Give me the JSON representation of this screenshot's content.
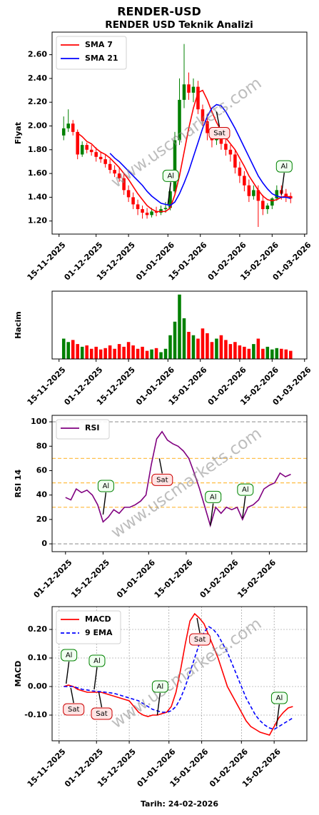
{
  "chart_data": [
    {
      "type": "candlestick",
      "title": "RENDER-USD",
      "subtitle": "RENDER USD Teknik Analizi",
      "y_label": "Fiyat",
      "watermark": "www.uscmarkets.com",
      "up_color": "#008000",
      "down_color": "#ff0000",
      "x": [
        "17-11-2025",
        "19-11-2025",
        "21-11-2025",
        "23-11-2025",
        "25-11-2025",
        "27-11-2025",
        "29-11-2025",
        "01-12-2025",
        "03-12-2025",
        "05-12-2025",
        "07-12-2025",
        "09-12-2025",
        "11-12-2025",
        "13-12-2025",
        "15-12-2025",
        "17-12-2025",
        "19-12-2025",
        "21-12-2025",
        "23-12-2025",
        "25-12-2025",
        "27-12-2025",
        "29-12-2025",
        "31-12-2025",
        "02-01-2026",
        "04-01-2026",
        "06-01-2026",
        "08-01-2026",
        "10-01-2026",
        "12-01-2026",
        "14-01-2026",
        "16-01-2026",
        "18-01-2026",
        "20-01-2026",
        "22-01-2026",
        "24-01-2026",
        "26-01-2026",
        "28-01-2026",
        "30-01-2026",
        "01-02-2026",
        "03-02-2026",
        "05-02-2026",
        "07-02-2026",
        "09-02-2026",
        "11-02-2026",
        "13-02-2026",
        "15-02-2026",
        "17-02-2026",
        "19-02-2026",
        "21-02-2026",
        "23-02-2026"
      ],
      "open": [
        1.92,
        1.98,
        2.02,
        1.95,
        1.76,
        1.84,
        1.8,
        1.78,
        1.74,
        1.72,
        1.68,
        1.63,
        1.6,
        1.56,
        1.46,
        1.4,
        1.34,
        1.3,
        1.27,
        1.25,
        1.28,
        1.27,
        1.3,
        1.31,
        1.45,
        1.88,
        2.22,
        2.35,
        2.28,
        2.33,
        2.14,
        2.04,
        1.94,
        1.88,
        1.92,
        1.85,
        1.8,
        1.76,
        1.65,
        1.58,
        1.5,
        1.41,
        1.46,
        1.37,
        1.3,
        1.33,
        1.39,
        1.46,
        1.43,
        1.41
      ],
      "high": [
        2.08,
        2.14,
        2.05,
        1.97,
        1.87,
        1.86,
        1.84,
        1.82,
        1.78,
        1.76,
        1.72,
        1.67,
        1.65,
        1.6,
        1.5,
        1.44,
        1.38,
        1.33,
        1.31,
        1.31,
        1.32,
        1.33,
        1.36,
        1.5,
        1.95,
        2.4,
        2.69,
        2.45,
        2.4,
        2.38,
        2.18,
        2.1,
        1.98,
        1.95,
        1.96,
        1.9,
        1.84,
        1.8,
        1.7,
        1.62,
        1.55,
        1.5,
        1.5,
        1.42,
        1.35,
        1.4,
        1.5,
        1.5,
        1.47,
        1.44
      ],
      "low": [
        1.88,
        1.95,
        1.92,
        1.72,
        1.74,
        1.77,
        1.75,
        1.7,
        1.69,
        1.65,
        1.6,
        1.57,
        1.53,
        1.42,
        1.36,
        1.3,
        1.25,
        1.22,
        1.22,
        1.23,
        1.24,
        1.25,
        1.27,
        1.29,
        1.42,
        1.84,
        2.15,
        2.22,
        2.2,
        2.1,
        2.0,
        1.88,
        1.82,
        1.84,
        1.8,
        1.75,
        1.7,
        1.6,
        1.52,
        1.45,
        1.36,
        1.38,
        1.15,
        1.25,
        1.26,
        1.3,
        1.37,
        1.38,
        1.36,
        1.35
      ],
      "close": [
        1.98,
        2.02,
        1.95,
        1.76,
        1.84,
        1.8,
        1.78,
        1.74,
        1.72,
        1.68,
        1.63,
        1.6,
        1.56,
        1.46,
        1.4,
        1.34,
        1.3,
        1.27,
        1.25,
        1.28,
        1.27,
        1.3,
        1.31,
        1.45,
        1.88,
        2.22,
        2.35,
        2.28,
        2.33,
        2.14,
        2.04,
        1.94,
        1.88,
        1.92,
        1.85,
        1.8,
        1.76,
        1.65,
        1.58,
        1.5,
        1.41,
        1.46,
        1.37,
        1.3,
        1.33,
        1.39,
        1.46,
        1.43,
        1.41,
        1.39
      ],
      "series": [
        {
          "name": "SMA 7",
          "color": "#ff0000",
          "values": [
            null,
            null,
            null,
            1.94,
            1.91,
            1.87,
            1.85,
            1.81,
            1.78,
            1.76,
            1.73,
            1.69,
            1.65,
            1.6,
            1.55,
            1.49,
            1.43,
            1.38,
            1.33,
            1.3,
            1.28,
            1.28,
            1.28,
            1.31,
            1.42,
            1.58,
            1.78,
            1.98,
            2.15,
            2.28,
            2.3,
            2.22,
            2.12,
            2.03,
            1.96,
            1.9,
            1.85,
            1.8,
            1.73,
            1.66,
            1.58,
            1.52,
            1.46,
            1.41,
            1.38,
            1.37,
            1.38,
            1.4,
            1.41,
            1.4
          ]
        },
        {
          "name": "SMA 21",
          "color": "#0000ff",
          "values": [
            null,
            null,
            null,
            null,
            null,
            null,
            null,
            null,
            null,
            null,
            1.77,
            1.73,
            1.7,
            1.66,
            1.62,
            1.58,
            1.54,
            1.5,
            1.45,
            1.41,
            1.38,
            1.35,
            1.34,
            1.33,
            1.36,
            1.43,
            1.52,
            1.62,
            1.74,
            1.86,
            1.98,
            2.08,
            2.15,
            2.18,
            2.17,
            2.12,
            2.05,
            1.98,
            1.9,
            1.82,
            1.74,
            1.66,
            1.58,
            1.52,
            1.47,
            1.43,
            1.41,
            1.4,
            1.4,
            1.39
          ]
        }
      ],
      "annotations": [
        {
          "text": "Al",
          "x": "01-01-2026",
          "y": 1.34
        },
        {
          "text": "Sat",
          "x": "22-01-2026",
          "y": 2.12
        },
        {
          "text": "Al",
          "x": "19-02-2026",
          "y": 1.42
        }
      ],
      "xlim": [
        "12-11-2025",
        "02-03-2026"
      ],
      "xticks": [
        "15-11-2025",
        "01-12-2025",
        "15-12-2025",
        "01-01-2026",
        "15-01-2026",
        "01-02-2026",
        "15-02-2026",
        "01-03-2026"
      ],
      "ylim": [
        1.09,
        2.79
      ],
      "yticks": [
        {
          "value": 1.2,
          "label": "1.20"
        },
        {
          "value": 1.4,
          "label": "1.40"
        },
        {
          "value": 1.6,
          "label": "1.60"
        },
        {
          "value": 1.8,
          "label": "1.80"
        },
        {
          "value": 2.0,
          "label": "2.00"
        },
        {
          "value": 2.2,
          "label": "2.20"
        },
        {
          "value": 2.4,
          "label": "2.40"
        },
        {
          "value": 2.6,
          "label": "2.60"
        }
      ],
      "legend": "upper left"
    },
    {
      "type": "bar",
      "y_label": "Hacim",
      "up_color": "#008000",
      "down_color": "#ff0000",
      "x": [
        "17-11-2025",
        "19-11-2025",
        "21-11-2025",
        "23-11-2025",
        "25-11-2025",
        "27-11-2025",
        "29-11-2025",
        "01-12-2025",
        "03-12-2025",
        "05-12-2025",
        "07-12-2025",
        "09-12-2025",
        "11-12-2025",
        "13-12-2025",
        "15-12-2025",
        "17-12-2025",
        "19-12-2025",
        "21-12-2025",
        "23-12-2025",
        "25-12-2025",
        "27-12-2025",
        "29-12-2025",
        "31-12-2025",
        "02-01-2026",
        "04-01-2026",
        "06-01-2026",
        "08-01-2026",
        "10-01-2026",
        "12-01-2026",
        "14-01-2026",
        "16-01-2026",
        "18-01-2026",
        "20-01-2026",
        "22-01-2026",
        "24-01-2026",
        "26-01-2026",
        "28-01-2026",
        "30-01-2026",
        "01-02-2026",
        "03-02-2026",
        "05-02-2026",
        "07-02-2026",
        "09-02-2026",
        "11-02-2026",
        "13-02-2026",
        "15-02-2026",
        "17-02-2026",
        "19-02-2026",
        "21-02-2026",
        "23-02-2026"
      ],
      "values": [
        30,
        25,
        28,
        22,
        18,
        20,
        15,
        18,
        14,
        16,
        20,
        15,
        22,
        18,
        25,
        20,
        15,
        18,
        12,
        14,
        16,
        10,
        15,
        35,
        55,
        95,
        60,
        40,
        35,
        30,
        45,
        38,
        25,
        30,
        35,
        28,
        22,
        25,
        20,
        18,
        15,
        22,
        30,
        15,
        18,
        14,
        16,
        15,
        14,
        12
      ],
      "xlim": [
        "12-11-2025",
        "02-03-2026"
      ],
      "xticks": [
        "15-11-2025",
        "01-12-2025",
        "15-12-2025",
        "01-01-2026",
        "15-01-2026",
        "01-02-2026",
        "15-02-2026",
        "01-03-2026"
      ],
      "ylim": [
        0,
        100
      ]
    },
    {
      "type": "line",
      "y_label": "RSI 14",
      "watermark": "www.uscmarkets.com",
      "x": [
        "01-12-2025",
        "03-12-2025",
        "05-12-2025",
        "07-12-2025",
        "09-12-2025",
        "11-12-2025",
        "13-12-2025",
        "15-12-2025",
        "17-12-2025",
        "19-12-2025",
        "21-12-2025",
        "23-12-2025",
        "25-12-2025",
        "27-12-2025",
        "29-12-2025",
        "31-12-2025",
        "02-01-2026",
        "04-01-2026",
        "06-01-2026",
        "08-01-2026",
        "10-01-2026",
        "12-01-2026",
        "14-01-2026",
        "16-01-2026",
        "18-01-2026",
        "20-01-2026",
        "22-01-2026",
        "24-01-2026",
        "26-01-2026",
        "28-01-2026",
        "30-01-2026",
        "01-02-2026",
        "03-02-2026",
        "05-02-2026",
        "07-02-2026",
        "09-02-2026",
        "11-02-2026",
        "13-02-2026",
        "15-02-2026",
        "17-02-2026",
        "19-02-2026",
        "21-02-2026",
        "23-02-2026"
      ],
      "series": [
        {
          "name": "RSI",
          "color": "#800080",
          "values": [
            38,
            36,
            45,
            42,
            44,
            40,
            32,
            18,
            22,
            28,
            25,
            30,
            30,
            32,
            35,
            40,
            65,
            86,
            92,
            85,
            82,
            80,
            76,
            70,
            58,
            45,
            30,
            15,
            30,
            25,
            30,
            28,
            30,
            20,
            30,
            32,
            36,
            45,
            48,
            50,
            58,
            55,
            57
          ]
        }
      ],
      "hlines": [
        {
          "value": 0,
          "color": "#aaaaaa"
        },
        {
          "value": 30,
          "color": "#ffc04d"
        },
        {
          "value": 50,
          "color": "#ffc04d"
        },
        {
          "value": 70,
          "color": "#ffc04d"
        },
        {
          "value": 100,
          "color": "#aaaaaa"
        }
      ],
      "annotations": [
        {
          "text": "Al",
          "x": "15-12-2025",
          "y": 24
        },
        {
          "text": "Sat",
          "x": "05-01-2026",
          "y": 70
        },
        {
          "text": "Al",
          "x": "24-01-2026",
          "y": 15
        },
        {
          "text": "Al",
          "x": "05-02-2026",
          "y": 21
        }
      ],
      "xlim": [
        "26-11-2025",
        "01-03-2026"
      ],
      "xticks": [
        "01-12-2025",
        "15-12-2025",
        "01-01-2026",
        "15-01-2026",
        "01-02-2026",
        "15-02-2026"
      ],
      "ylim": [
        -6.4,
        105.3
      ],
      "yticks": [
        0,
        20,
        40,
        60,
        80,
        100
      ],
      "legend": "upper left"
    },
    {
      "type": "line",
      "y_label": "MACD",
      "x_label": "Tarih: 24-02-2026",
      "watermark": "www.uscmarkets.com",
      "grid": true,
      "x": [
        "17-11-2025",
        "19-11-2025",
        "21-11-2025",
        "23-11-2025",
        "25-11-2025",
        "27-11-2025",
        "29-11-2025",
        "01-12-2025",
        "03-12-2025",
        "05-12-2025",
        "07-12-2025",
        "09-12-2025",
        "11-12-2025",
        "13-12-2025",
        "15-12-2025",
        "17-12-2025",
        "19-12-2025",
        "21-12-2025",
        "23-12-2025",
        "25-12-2025",
        "27-12-2025",
        "29-12-2025",
        "31-12-2025",
        "02-01-2026",
        "04-01-2026",
        "06-01-2026",
        "08-01-2026",
        "10-01-2026",
        "12-01-2026",
        "14-01-2026",
        "16-01-2026",
        "18-01-2026",
        "20-01-2026",
        "22-01-2026",
        "24-01-2026",
        "26-01-2026",
        "28-01-2026",
        "30-01-2026",
        "01-02-2026",
        "03-02-2026",
        "05-02-2026",
        "07-02-2026",
        "09-02-2026",
        "11-02-2026",
        "13-02-2026",
        "15-02-2026",
        "17-02-2026",
        "19-02-2026",
        "21-02-2026",
        "23-02-2026"
      ],
      "series": [
        {
          "name": "MACD",
          "color": "#ff0000",
          "values": [
            0.0,
            0.005,
            0.0,
            -0.01,
            -0.015,
            -0.02,
            -0.02,
            -0.02,
            -0.02,
            -0.025,
            -0.03,
            -0.035,
            -0.04,
            -0.045,
            -0.05,
            -0.07,
            -0.09,
            -0.1,
            -0.105,
            -0.1,
            -0.1,
            -0.095,
            -0.09,
            -0.07,
            -0.02,
            0.06,
            0.15,
            0.23,
            0.255,
            0.24,
            0.22,
            0.18,
            0.14,
            0.1,
            0.05,
            0.0,
            -0.03,
            -0.06,
            -0.09,
            -0.12,
            -0.14,
            -0.15,
            -0.16,
            -0.165,
            -0.17,
            -0.14,
            -0.11,
            -0.09,
            -0.075,
            -0.07
          ]
        },
        {
          "name": "9 EMA",
          "color": "#0000ff",
          "dashed": true,
          "values": [
            0.0,
            0.0,
            0.0,
            -0.005,
            -0.01,
            -0.012,
            -0.015,
            -0.017,
            -0.018,
            -0.02,
            -0.022,
            -0.025,
            -0.03,
            -0.035,
            -0.04,
            -0.045,
            -0.05,
            -0.06,
            -0.07,
            -0.08,
            -0.085,
            -0.09,
            -0.09,
            -0.085,
            -0.07,
            -0.04,
            0.0,
            0.05,
            0.1,
            0.15,
            0.19,
            0.21,
            0.2,
            0.18,
            0.15,
            0.12,
            0.08,
            0.04,
            0.0,
            -0.04,
            -0.07,
            -0.1,
            -0.12,
            -0.135,
            -0.145,
            -0.15,
            -0.14,
            -0.13,
            -0.12,
            -0.11
          ]
        }
      ],
      "annotations": [
        {
          "text": "Al",
          "x": "18-11-2025",
          "y": 0.01
        },
        {
          "text": "Sat",
          "x": "20-11-2025",
          "y": -0.005
        },
        {
          "text": "Al",
          "x": "30-11-2025",
          "y": -0.01
        },
        {
          "text": "Sat",
          "x": "02-12-2025",
          "y": -0.02
        },
        {
          "text": "Al",
          "x": "27-12-2025",
          "y": -0.1
        },
        {
          "text": "Sat",
          "x": "13-01-2026",
          "y": 0.24
        },
        {
          "text": "Al",
          "x": "16-02-2026",
          "y": -0.14
        }
      ],
      "xlim": [
        "12-11-2025",
        "01-03-2026"
      ],
      "xticks": [
        "15-11-2025",
        "01-12-2025",
        "15-12-2025",
        "01-01-2026",
        "15-01-2026",
        "01-02-2026",
        "15-02-2026"
      ],
      "ylim": [
        -0.19,
        0.28
      ],
      "yticks": [
        {
          "value": -0.1,
          "label": "-0.10"
        },
        {
          "value": 0,
          "label": "0.00"
        },
        {
          "value": 0.1,
          "label": "0.10"
        },
        {
          "value": 0.2,
          "label": "0.20"
        }
      ],
      "legend": "upper left"
    }
  ]
}
